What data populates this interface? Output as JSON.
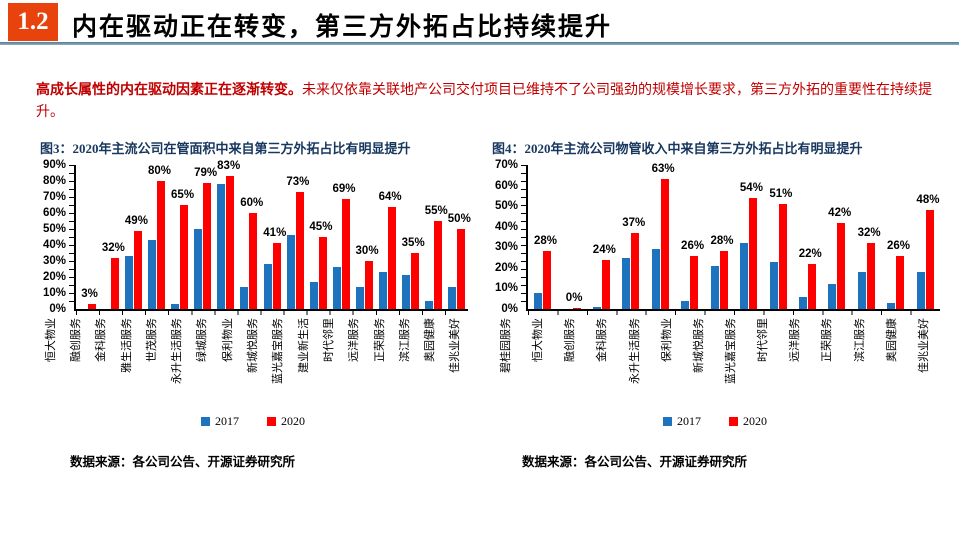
{
  "header": {
    "section_number": "1.2",
    "title": "内在驱动正在转变，第三方外拓占比持续提升"
  },
  "intro": {
    "lead": "高成长属性的内在驱动因素正在逐渐转变。",
    "body": "未来仅依靠关联地产公司交付项目已维持不了公司强劲的规模增长要求，第三方外拓的重要性在持续提升。"
  },
  "colors": {
    "accent_orange": "#E8430D",
    "header_rule_blue": "#6E93A8",
    "intro_red": "#C00000",
    "chart_title_navy": "#17375E",
    "bar_2017_blue": "#1E73BE",
    "bar_2020_red": "#FE0000"
  },
  "legend": {
    "items": [
      {
        "label": "2017",
        "color": "#1E73BE"
      },
      {
        "label": "2020",
        "color": "#FE0000"
      }
    ]
  },
  "chart_data": [
    {
      "type": "bar",
      "title": "图3：2020年主流公司在管面积中来自第三方外拓占比有明显提升",
      "ylabel": "",
      "xlabel": "",
      "ylim": [
        0,
        90
      ],
      "y_max": 90,
      "y_tick_labels": [
        "90%",
        "80%",
        "70%",
        "60%",
        "50%",
        "40%",
        "30%",
        "20%",
        "10%",
        "0%"
      ],
      "grid": false,
      "legend_position": "bottom",
      "categories": [
        "恒大物业",
        "融创服务",
        "金科服务",
        "雅生活服务",
        "世茂服务",
        "永升生活服务",
        "绿城服务",
        "保利物业",
        "新城悦服务",
        "蓝光嘉宝服务",
        "建业新生活",
        "时代邻里",
        "远洋服务",
        "正荣服务",
        "滨江服务",
        "奥园健康",
        "佳兆业美好"
      ],
      "series": [
        {
          "name": "2017",
          "color": "#1E73BE",
          "values": [
            0,
            0,
            33,
            43,
            3,
            50,
            78,
            14,
            28,
            46,
            17,
            26,
            14,
            23,
            21,
            5,
            14
          ]
        },
        {
          "name": "2020",
          "color": "#FE0000",
          "values": [
            3,
            32,
            49,
            80,
            65,
            79,
            83,
            60,
            41,
            73,
            45,
            69,
            30,
            64,
            35,
            55,
            50
          ]
        }
      ],
      "data_labels": [
        "3%",
        "32%",
        "49%",
        "80%",
        "65%",
        "79%",
        "83%",
        "60%",
        "41%",
        "73%",
        "45%",
        "69%",
        "30%",
        "64%",
        "35%",
        "55%",
        "50%"
      ],
      "source": "数据来源：各公司公告、开源证券研究所"
    },
    {
      "type": "bar",
      "title": "图4：2020年主流公司物管收入中来自第三方外拓占比有明显提升",
      "ylabel": "",
      "xlabel": "",
      "ylim": [
        0,
        70
      ],
      "y_max": 70,
      "y_tick_labels": [
        "70%",
        "60%",
        "50%",
        "40%",
        "30%",
        "20%",
        "10%",
        "0%"
      ],
      "grid": false,
      "legend_position": "bottom",
      "categories": [
        "碧桂园服务",
        "恒大物业",
        "融创服务",
        "金科服务",
        "永升生活服务",
        "保利物业",
        "新城悦服务",
        "蓝光嘉宝服务",
        "时代邻里",
        "远洋服务",
        "正荣服务",
        "滨江服务",
        "奥园健康",
        "佳兆业美好"
      ],
      "series": [
        {
          "name": "2017",
          "color": "#1E73BE",
          "values": [
            8,
            0,
            1,
            25,
            29,
            4,
            21,
            32,
            23,
            6,
            12,
            18,
            3,
            18
          ]
        },
        {
          "name": "2020",
          "color": "#FE0000",
          "values": [
            28,
            0.5,
            24,
            37,
            63,
            26,
            28,
            54,
            51,
            22,
            42,
            32,
            26,
            48
          ]
        }
      ],
      "data_labels": [
        "28%",
        "0%",
        "24%",
        "37%",
        "63%",
        "26%",
        "28%",
        "54%",
        "51%",
        "22%",
        "42%",
        "32%",
        "26%",
        "48%"
      ],
      "source": "数据来源：各公司公告、开源证券研究所"
    }
  ]
}
